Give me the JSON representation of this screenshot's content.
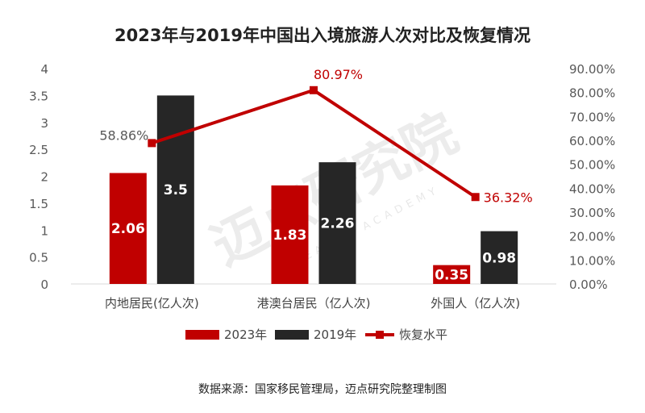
{
  "watermark": {
    "text": "迈点研究院",
    "sub_text": "MEADIN ACADEMY"
  },
  "chart_data": {
    "type": "bar",
    "title": "2023年与2019年中国出入境旅游人次对比及恢复情况",
    "categories": [
      "内地居民(亿人次)",
      "港澳台居民（亿人次)",
      "外国人（亿人次)"
    ],
    "series": [
      {
        "name": "2023年",
        "kind": "bar",
        "axis": "left",
        "color": "#c00000",
        "values": [
          2.06,
          1.83,
          0.35
        ],
        "labels": [
          "2.06",
          "1.83",
          "0.35"
        ]
      },
      {
        "name": "2019年",
        "kind": "bar",
        "axis": "left",
        "color": "#262626",
        "values": [
          3.5,
          2.26,
          0.98
        ],
        "labels": [
          "3.5",
          "2.26",
          "0.98"
        ]
      },
      {
        "name": "恢复水平",
        "kind": "line",
        "axis": "right",
        "color": "#c00000",
        "values": [
          58.86,
          80.97,
          36.32
        ],
        "labels": [
          "58.86%",
          "80.97%",
          "36.32%"
        ]
      }
    ],
    "left_axis": {
      "min": 0,
      "max": 4,
      "ticks": [
        "0",
        "0.5",
        "1",
        "1.5",
        "2",
        "2.5",
        "3",
        "3.5",
        "4"
      ]
    },
    "right_axis": {
      "min": 0,
      "max": 90,
      "ticks": [
        "0.00%",
        "10.00%",
        "20.00%",
        "30.00%",
        "40.00%",
        "50.00%",
        "60.00%",
        "70.00%",
        "80.00%",
        "90.00%"
      ]
    },
    "legend_position": "bottom",
    "source": "数据来源：国家移民管理局，迈点研究院整理制图"
  }
}
